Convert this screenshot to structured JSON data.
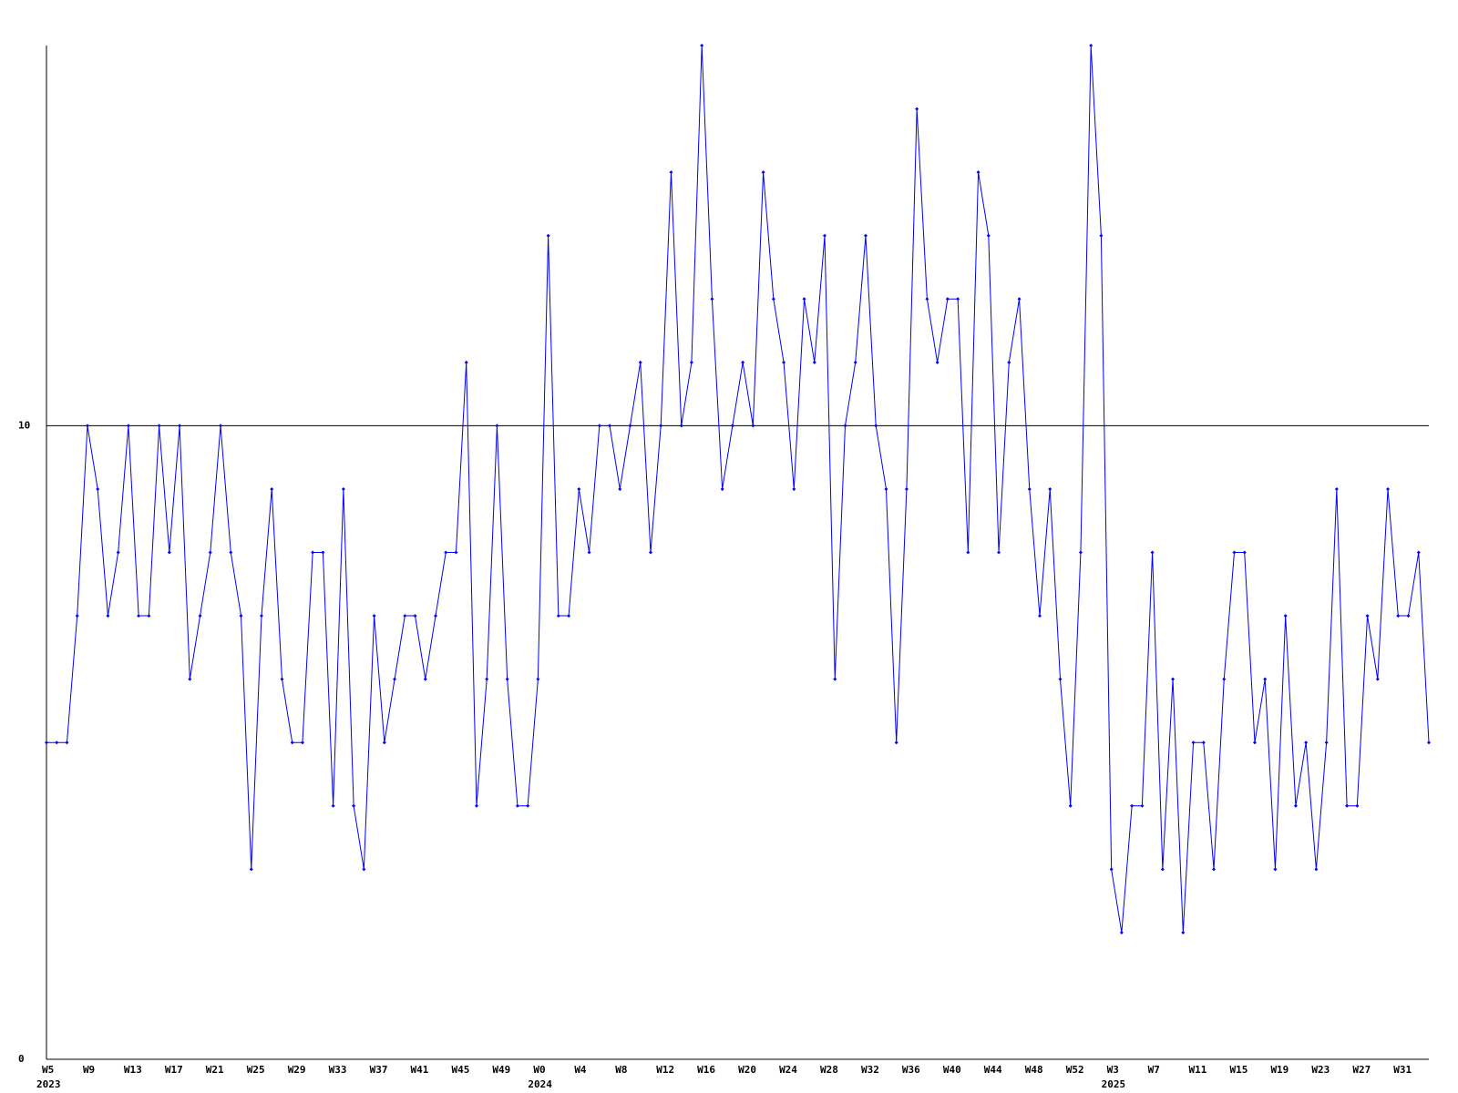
{
  "chart_data": {
    "type": "line",
    "categories": [
      "W5",
      null,
      null,
      null,
      "W9",
      null,
      null,
      null,
      "W13",
      null,
      null,
      null,
      "W17",
      null,
      null,
      null,
      "W21",
      null,
      null,
      null,
      "W25",
      null,
      null,
      null,
      "W29",
      null,
      null,
      null,
      "W33",
      null,
      null,
      null,
      "W37",
      null,
      null,
      null,
      "W41",
      null,
      null,
      null,
      "W45",
      null,
      null,
      null,
      "W49",
      null,
      null,
      null,
      "W0",
      null,
      null,
      null,
      "W4",
      null,
      null,
      null,
      "W8",
      null,
      null,
      null,
      "W12",
      null,
      null,
      null,
      "W16",
      null,
      null,
      null,
      "W20",
      null,
      null,
      null,
      "W24",
      null,
      null,
      null,
      "W28",
      null,
      null,
      null,
      "W32",
      null,
      null,
      null,
      "W36",
      null,
      null,
      null,
      "W40",
      null,
      null,
      null,
      "W44",
      null,
      null,
      null,
      "W48",
      null,
      null,
      null,
      "W52",
      null,
      null,
      null,
      "W3",
      null,
      null,
      null,
      "W7",
      null,
      null,
      null,
      "W11",
      null,
      null,
      null,
      "W15",
      null,
      null,
      null,
      "W19",
      null,
      null,
      null,
      "W23",
      null,
      null,
      null,
      "W27",
      null,
      null,
      null,
      "W31",
      null,
      null,
      null
    ],
    "category_years": [
      "2023",
      null,
      null,
      null,
      null,
      null,
      null,
      null,
      null,
      null,
      null,
      null,
      null,
      null,
      null,
      null,
      null,
      null,
      null,
      null,
      null,
      null,
      null,
      null,
      null,
      null,
      null,
      null,
      null,
      null,
      null,
      null,
      null,
      null,
      null,
      null,
      null,
      null,
      null,
      null,
      null,
      null,
      null,
      null,
      null,
      null,
      null,
      null,
      "2024",
      null,
      null,
      null,
      null,
      null,
      null,
      null,
      null,
      null,
      null,
      null,
      null,
      null,
      null,
      null,
      null,
      null,
      null,
      null,
      null,
      null,
      null,
      null,
      null,
      null,
      null,
      null,
      null,
      null,
      null,
      null,
      null,
      null,
      null,
      null,
      null,
      null,
      null,
      null,
      null,
      null,
      null,
      null,
      null,
      null,
      null,
      null,
      null,
      null,
      null,
      null,
      null,
      null,
      null,
      null,
      "2025",
      null,
      null,
      null,
      null,
      null,
      null,
      null,
      null,
      null,
      null,
      null,
      null,
      null,
      null,
      null,
      null,
      null,
      null,
      null,
      null,
      null,
      null,
      null,
      null,
      null,
      null,
      null,
      null,
      null,
      null,
      null
    ],
    "values": [
      5,
      5,
      5,
      7,
      10,
      9,
      7,
      8,
      10,
      7,
      7,
      10,
      8,
      10,
      6,
      7,
      8,
      10,
      8,
      7,
      3,
      7,
      9,
      6,
      5,
      5,
      8,
      8,
      4,
      9,
      4,
      3,
      7,
      5,
      6,
      7,
      7,
      6,
      7,
      8,
      8,
      11,
      4,
      6,
      10,
      6,
      4,
      4,
      6,
      13,
      7,
      7,
      9,
      8,
      10,
      10,
      9,
      10,
      11,
      8,
      10,
      14,
      10,
      11,
      16,
      12,
      9,
      10,
      11,
      10,
      14,
      12,
      11,
      9,
      12,
      11,
      13,
      6,
      10,
      11,
      13,
      10,
      9,
      5,
      9,
      15,
      12,
      11,
      12,
      12,
      8,
      14,
      13,
      8,
      11,
      12,
      9,
      7,
      9,
      6,
      4,
      8,
      16,
      13,
      3,
      2,
      4,
      4,
      8,
      3,
      6,
      2,
      5,
      5,
      3,
      6,
      8,
      8,
      5,
      6,
      3,
      7,
      4,
      5,
      3,
      5,
      9,
      4,
      4,
      7,
      6,
      9,
      7,
      7,
      8,
      5
    ],
    "color": "#0000ff",
    "ylim": [
      0,
      16
    ],
    "yticks": [
      0,
      10
    ],
    "grid": true
  }
}
